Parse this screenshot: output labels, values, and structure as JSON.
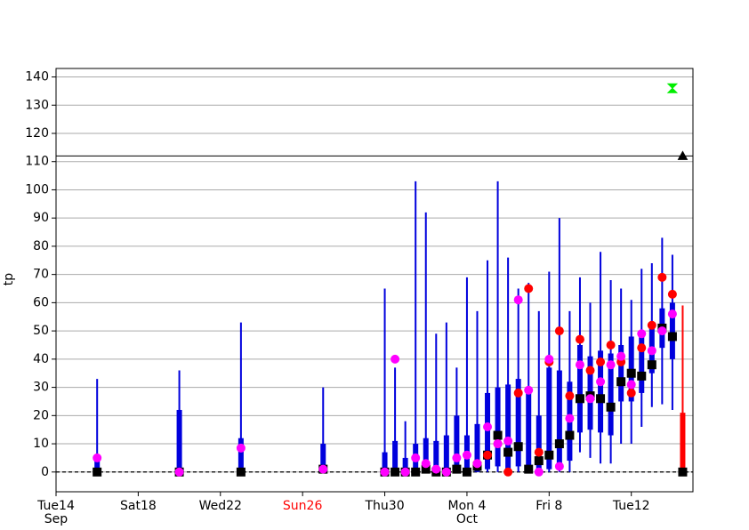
{
  "chart_data": {
    "type": "boxplot",
    "ylabel": "tp",
    "xlim": [
      0,
      31
    ],
    "ylim": [
      -7,
      143
    ],
    "yticks": [
      0,
      10,
      20,
      30,
      40,
      50,
      60,
      70,
      80,
      90,
      100,
      110,
      120,
      130,
      140
    ],
    "xticks": [
      {
        "value": 0,
        "label": "Tue14"
      },
      {
        "value": 4,
        "label": "Sat18"
      },
      {
        "value": 8,
        "label": "Wed22"
      },
      {
        "value": 12,
        "label": "Sun26",
        "color": "#ff0000"
      },
      {
        "value": 16,
        "label": "Thu30"
      },
      {
        "value": 20,
        "label": "Mon 4"
      },
      {
        "value": 24,
        "label": "Fri 8"
      },
      {
        "value": 28,
        "label": "Tue12"
      }
    ],
    "month_labels": [
      {
        "value": 0,
        "label": "Sep"
      },
      {
        "value": 20,
        "label": "Oct"
      }
    ],
    "grid": true,
    "zero_line": 0,
    "ref_line": 112,
    "box_color": "#0000dd",
    "median_color": "#000000",
    "mean_color": "#ff00ff",
    "obs_color": "#ff0000",
    "boxes": {
      "x": [
        2,
        6,
        9,
        13,
        16,
        16.5,
        17,
        17.5,
        18,
        18.5,
        19,
        19.5,
        20,
        20.5,
        21,
        21.5,
        22,
        22.5,
        23,
        23.5,
        24,
        24.5,
        25,
        25.5,
        26,
        26.5,
        27,
        27.5,
        28,
        28.5,
        29,
        29.5,
        30
      ],
      "low": [
        0,
        0,
        0,
        0,
        0,
        0,
        0,
        0,
        0,
        0,
        0,
        0,
        0,
        0,
        0,
        0,
        0,
        0,
        0,
        0,
        0,
        0,
        0,
        7,
        5,
        3,
        3,
        10,
        10,
        16,
        23,
        24,
        22
      ],
      "q1": [
        0,
        0,
        0,
        0,
        0,
        0,
        0,
        0,
        0,
        0,
        0,
        0,
        0,
        0,
        1,
        2,
        1,
        2,
        0,
        0,
        1,
        2,
        4,
        14,
        15,
        14,
        13,
        25,
        25,
        28,
        35,
        44,
        40
      ],
      "q3": [
        4,
        22,
        12,
        10,
        7,
        11,
        5,
        10,
        12,
        11,
        13,
        20,
        13,
        17,
        28,
        30,
        31,
        33,
        30,
        20,
        37,
        36,
        32,
        45,
        41,
        43,
        42,
        45,
        48,
        50,
        53,
        58,
        60
      ],
      "high": [
        33,
        36,
        53,
        30,
        65,
        37,
        18,
        103,
        92,
        49,
        53,
        37,
        69,
        57,
        75,
        103,
        76,
        65,
        67,
        57,
        71,
        90,
        57,
        69,
        60,
        78,
        68,
        65,
        61,
        72,
        74,
        83,
        77
      ],
      "median": [
        0,
        0,
        0,
        1,
        0,
        0,
        0,
        0,
        1,
        0,
        0,
        1,
        0,
        2,
        6,
        13,
        7,
        9,
        1,
        4,
        6,
        10,
        13,
        26,
        27,
        26,
        23,
        32,
        35,
        34,
        38,
        51,
        48
      ],
      "mean": [
        5,
        0,
        8.5,
        1,
        0,
        40,
        0,
        5,
        3,
        1,
        0,
        5,
        6,
        3,
        16,
        10,
        11,
        61,
        29,
        0,
        40,
        2,
        19,
        38,
        26,
        32,
        38,
        41,
        31,
        49,
        43,
        50,
        56
      ],
      "obs": [
        null,
        null,
        null,
        null,
        null,
        null,
        null,
        null,
        null,
        null,
        null,
        null,
        null,
        3,
        6,
        10,
        0,
        28,
        65,
        7,
        39,
        50,
        27,
        47,
        36,
        39,
        45,
        39,
        28,
        44,
        52,
        69,
        63
      ]
    },
    "last_box": {
      "x": 30.5,
      "low": 0,
      "q1": 0,
      "q3": 21,
      "high": 59,
      "median": 0,
      "color": "#ff0000"
    },
    "markers": [
      {
        "x": 30.5,
        "y": 112,
        "shape": "triangle",
        "color": "#000000"
      },
      {
        "x": 30,
        "y": 136,
        "shape": "hourglass",
        "color": "#00ee00"
      }
    ]
  }
}
